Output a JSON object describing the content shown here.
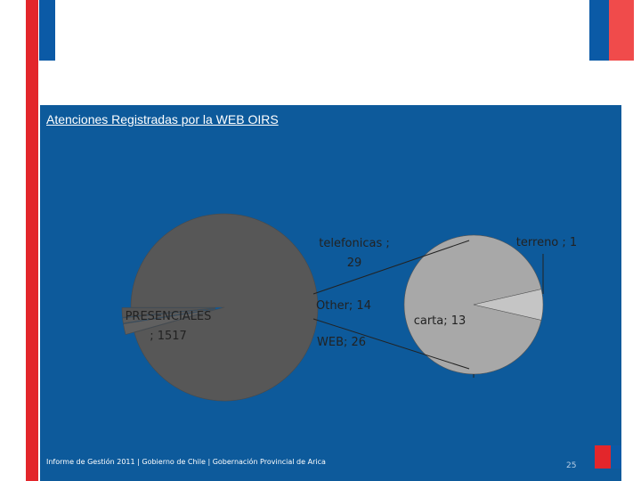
{
  "title": "Atenciones Registradas por la WEB OIRS",
  "footer": "Informe de Gestión 2011 | Gobierno de Chile | Gobernación Provincial de Arica",
  "page_number": "25",
  "colors": {
    "panel": "#0d5a9b",
    "brand_blue": "#0b5aa6",
    "brand_red": "#e3262b",
    "brand_light_red": "#f04b4b",
    "pie_dark": "#575757",
    "pie_light": "#a8a8a8",
    "pie_small": "#c5c5c5"
  },
  "chart_data": {
    "type": "pie",
    "title": "",
    "slices": [
      {
        "label": "PRESENCIALES",
        "value": 1517,
        "display": "PRESENCIALES ; 1517"
      },
      {
        "label": "telefonicas",
        "value": 29,
        "display": "telefonicas ; 29"
      },
      {
        "label": "Other",
        "value": 14,
        "display": "Other; 14"
      },
      {
        "label": "WEB",
        "value": 26,
        "display": "WEB; 26"
      }
    ],
    "sub_pie": {
      "parent": "Other",
      "slices": [
        {
          "label": "carta",
          "value": 13,
          "display": "carta; 13"
        },
        {
          "label": "terreno",
          "value": 1,
          "display": "terreno ; 1"
        }
      ]
    }
  }
}
